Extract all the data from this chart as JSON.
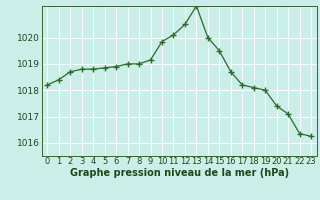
{
  "x": [
    0,
    1,
    2,
    3,
    4,
    5,
    6,
    7,
    8,
    9,
    10,
    11,
    12,
    13,
    14,
    15,
    16,
    17,
    18,
    19,
    20,
    21,
    22,
    23
  ],
  "y": [
    1018.2,
    1018.4,
    1018.7,
    1018.8,
    1018.8,
    1018.85,
    1018.9,
    1019.0,
    1019.0,
    1019.15,
    1019.85,
    1020.1,
    1020.5,
    1021.2,
    1020.0,
    1019.5,
    1018.7,
    1018.2,
    1018.1,
    1018.0,
    1017.4,
    1017.1,
    1016.35,
    1016.25
  ],
  "line_color": "#2d6a2d",
  "marker": "+",
  "marker_size": 4,
  "marker_lw": 1.0,
  "bg_color": "#cceee8",
  "grid_color": "#ffffff",
  "grid_lw": 0.6,
  "ylabel_ticks": [
    1016,
    1017,
    1018,
    1019,
    1020
  ],
  "xlabel_label": "Graphe pression niveau de la mer (hPa)",
  "ylim": [
    1015.5,
    1021.2
  ],
  "xlim": [
    -0.5,
    23.5
  ],
  "xlabel_fontsize": 7,
  "tick_fontsize": 6.5,
  "label_color": "#1a4a1a",
  "spine_color": "#336633",
  "line_lw": 0.9
}
